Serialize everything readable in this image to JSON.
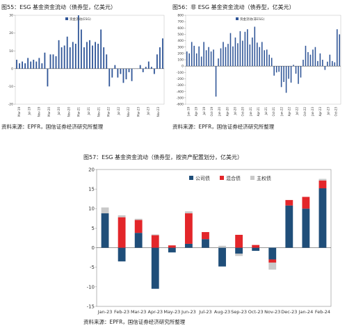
{
  "figures": {
    "fig55": {
      "title": "图55：ESG 基金资金流动（债券型，亿美元）",
      "source": "资料来源：EPFR，国信证券经济研究所整理"
    },
    "fig56": {
      "title": "图56：非 ESG 基金资金流动（债券型，亿美元）",
      "source": "资料来源：EPFR，国信证券经济研究所整理"
    },
    "fig57": {
      "title": "图57：ESG 基金资金流动（债券型，按资产配置划分，亿美元）",
      "source": "资料来源：EPFR，国信证券经济研究所整理"
    }
  },
  "chart_data": [
    {
      "id": "fig55",
      "type": "bar",
      "title": "",
      "legend": [
        "资金流动(ESG)"
      ],
      "legend_position": "top-left",
      "color": "#2f5597",
      "ylim": [
        -20,
        30
      ],
      "yticks": [
        -20,
        -10,
        0,
        10,
        20,
        30
      ],
      "x_tick_labels": [
        "Mar-19",
        "Jul-19",
        "Nov-19",
        "Mar-20",
        "Jul-20",
        "Nov-20",
        "Mar-21",
        "Jul-21",
        "Nov-21",
        "Mar-22",
        "Jul-22",
        "Nov-22",
        "Mar-23",
        "Jul-23",
        "Nov-23"
      ],
      "series": [
        {
          "name": "资金流动(ESG)",
          "values": [
            5,
            3,
            4,
            3,
            6,
            4,
            5,
            4,
            6,
            3,
            9,
            -10,
            8,
            8,
            7,
            16,
            12,
            13,
            18,
            12,
            15,
            14,
            30,
            22,
            12,
            15,
            16,
            13,
            15,
            14,
            22,
            12,
            8,
            -10,
            -5,
            2,
            -5,
            -3,
            -8,
            -6,
            -2,
            -7,
            0,
            0,
            2,
            -2,
            1,
            4,
            1,
            -3,
            8,
            12,
            17
          ]
        }
      ]
    },
    {
      "id": "fig56",
      "type": "bar",
      "title": "",
      "legend": [
        "资金流动(非ESG)"
      ],
      "legend_position": "top-left",
      "color": "#2f5597",
      "ylim": [
        -600,
        800
      ],
      "yticks": [
        -600,
        -500,
        -400,
        -300,
        -200,
        -100,
        0,
        100,
        200,
        300,
        400,
        500,
        600,
        700,
        800
      ],
      "x_tick_labels": [
        "Jan-19",
        "Apr-19",
        "Jul-19",
        "Oct-19",
        "Jan-20",
        "Apr-20",
        "Jul-20",
        "Oct-20",
        "Jan-21",
        "Apr-21",
        "Jul-21",
        "Oct-21",
        "Jan-22",
        "Apr-22",
        "Jul-22",
        "Oct-22",
        "Jan-23",
        "Apr-23",
        "Jul-23",
        "Oct-23"
      ],
      "series": [
        {
          "name": "资金流动(非ESG)",
          "values": [
            230,
            200,
            380,
            320,
            200,
            310,
            150,
            380,
            250,
            300,
            230,
            260,
            -480,
            120,
            280,
            380,
            300,
            350,
            520,
            310,
            450,
            360,
            550,
            400,
            540,
            580,
            340,
            450,
            620,
            370,
            300,
            380,
            250,
            260,
            180,
            130,
            -150,
            -100,
            -90,
            -330,
            -250,
            -420,
            -200,
            -260,
            20,
            -120,
            -280,
            -180,
            100,
            320,
            220,
            180,
            260,
            300,
            80,
            200,
            100,
            -60,
            70,
            180,
            80,
            60,
            580,
            500
          ]
        }
      ]
    },
    {
      "id": "fig57",
      "type": "bar",
      "stacked": true,
      "title": "",
      "legend": [
        "公司债",
        "混合债",
        "主权债"
      ],
      "legend_position": "top-right",
      "colors": [
        "#1f4e79",
        "#e3262a",
        "#c9c9c9"
      ],
      "ylim": [
        -15,
        20
      ],
      "yticks": [
        -15,
        -10,
        -5,
        0,
        5,
        10,
        15,
        20
      ],
      "grid": false,
      "categories": [
        "Jan-23",
        "Feb-23",
        "Mar-23",
        "Apr-23",
        "May-23",
        "Jun-23",
        "Jul-23",
        "Aug-23",
        "Sep-23",
        "Oct-23",
        "Nov-23",
        "Dec-23",
        "Jan-24",
        "Feb-24"
      ],
      "series": [
        {
          "name": "公司债",
          "values": [
            8.8,
            -3.5,
            3.8,
            -10.5,
            -1.2,
            1.0,
            2.2,
            -4.8,
            -1.5,
            -0.8,
            -3.0,
            10.8,
            10.0,
            15.2
          ]
        },
        {
          "name": "混合债",
          "values": [
            0,
            7.8,
            3.3,
            3.2,
            0.6,
            7.8,
            1.8,
            0,
            3.3,
            0.7,
            -0.8,
            1.4,
            3.0,
            2.0
          ]
        },
        {
          "name": "主权债",
          "values": [
            1.5,
            0.5,
            0.3,
            0.2,
            0,
            0.5,
            0,
            0.5,
            -0.6,
            0,
            -1.8,
            0,
            0,
            0.4
          ]
        }
      ]
    }
  ]
}
